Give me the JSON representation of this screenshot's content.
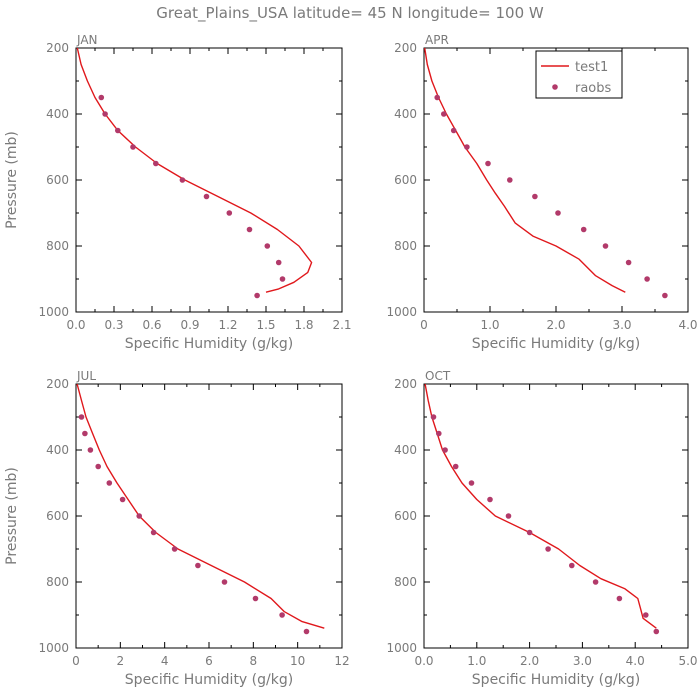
{
  "title": "Great_Plains_USA  latitude= 45 N longitude= 100 W",
  "colors": {
    "model": "#e0181c",
    "obs": "#b23a6a",
    "axis": "#000000",
    "text": "#7a7a7a"
  },
  "legend": {
    "model_label": "test1",
    "obs_label": "raobs",
    "placement": "top-right of APR panel"
  },
  "chart_data": [
    {
      "type": "line",
      "panel": "JAN",
      "xlabel": "Specific Humidity (g/kg)",
      "ylabel": "Pressure (mb)",
      "xlim": [
        0,
        2.1
      ],
      "ylim": [
        1000,
        200
      ],
      "xticks": [
        "0.0",
        "0.3",
        "0.6",
        "0.9",
        "1.2",
        "1.5",
        "1.8",
        "2.1"
      ],
      "yticks": [
        "200",
        "400",
        "600",
        "800",
        "1000"
      ],
      "series": [
        {
          "name": "test1",
          "kind": "line",
          "points": [
            [
              0.01,
              200
            ],
            [
              0.04,
              250
            ],
            [
              0.09,
              300
            ],
            [
              0.15,
              350
            ],
            [
              0.23,
              400
            ],
            [
              0.33,
              450
            ],
            [
              0.47,
              500
            ],
            [
              0.64,
              550
            ],
            [
              0.86,
              600
            ],
            [
              1.12,
              650
            ],
            [
              1.38,
              700
            ],
            [
              1.59,
              750
            ],
            [
              1.76,
              800
            ],
            [
              1.86,
              850
            ],
            [
              1.83,
              880
            ],
            [
              1.72,
              910
            ],
            [
              1.6,
              930
            ],
            [
              1.5,
              940
            ]
          ]
        },
        {
          "name": "raobs",
          "kind": "scatter",
          "points": [
            [
              0.2,
              350
            ],
            [
              0.23,
              400
            ],
            [
              0.33,
              450
            ],
            [
              0.45,
              500
            ],
            [
              0.63,
              550
            ],
            [
              0.84,
              600
            ],
            [
              1.03,
              650
            ],
            [
              1.21,
              700
            ],
            [
              1.37,
              750
            ],
            [
              1.51,
              800
            ],
            [
              1.6,
              850
            ],
            [
              1.63,
              900
            ],
            [
              1.43,
              950
            ]
          ]
        }
      ]
    },
    {
      "type": "line",
      "panel": "APR",
      "xlabel": "Specific Humidity (g/kg)",
      "ylabel": "",
      "xlim": [
        0,
        4.0
      ],
      "ylim": [
        1000,
        200
      ],
      "xticks": [
        "0",
        "1.0",
        "2.0",
        "3.0",
        "4.0"
      ],
      "yticks": [
        "200",
        "400",
        "600",
        "800",
        "1000"
      ],
      "series": [
        {
          "name": "test1",
          "kind": "line",
          "points": [
            [
              0.01,
              200
            ],
            [
              0.05,
              250
            ],
            [
              0.12,
              300
            ],
            [
              0.22,
              350
            ],
            [
              0.34,
              400
            ],
            [
              0.48,
              450
            ],
            [
              0.62,
              500
            ],
            [
              0.8,
              550
            ],
            [
              0.95,
              600
            ],
            [
              1.08,
              640
            ],
            [
              1.22,
              680
            ],
            [
              1.38,
              730
            ],
            [
              1.65,
              770
            ],
            [
              2.0,
              800
            ],
            [
              2.35,
              840
            ],
            [
              2.6,
              890
            ],
            [
              2.85,
              920
            ],
            [
              3.05,
              940
            ]
          ]
        },
        {
          "name": "raobs",
          "kind": "scatter",
          "points": [
            [
              0.2,
              350
            ],
            [
              0.3,
              400
            ],
            [
              0.45,
              450
            ],
            [
              0.65,
              500
            ],
            [
              0.97,
              550
            ],
            [
              1.3,
              600
            ],
            [
              1.68,
              650
            ],
            [
              2.03,
              700
            ],
            [
              2.42,
              750
            ],
            [
              2.75,
              800
            ],
            [
              3.1,
              850
            ],
            [
              3.38,
              900
            ],
            [
              3.65,
              950
            ]
          ]
        }
      ]
    },
    {
      "type": "line",
      "panel": "JUL",
      "xlabel": "Specific Humidity (g/kg)",
      "ylabel": "Pressure (mb)",
      "xlim": [
        0,
        12
      ],
      "ylim": [
        1000,
        200
      ],
      "xticks": [
        "0",
        "2",
        "4",
        "6",
        "8",
        "10",
        "12"
      ],
      "yticks": [
        "200",
        "400",
        "600",
        "800",
        "1000"
      ],
      "series": [
        {
          "name": "test1",
          "kind": "line",
          "points": [
            [
              0.05,
              200
            ],
            [
              0.25,
              250
            ],
            [
              0.45,
              300
            ],
            [
              0.75,
              350
            ],
            [
              1.05,
              400
            ],
            [
              1.4,
              450
            ],
            [
              1.85,
              500
            ],
            [
              2.35,
              550
            ],
            [
              2.85,
              600
            ],
            [
              3.6,
              650
            ],
            [
              4.6,
              700
            ],
            [
              6.1,
              750
            ],
            [
              7.6,
              800
            ],
            [
              8.8,
              850
            ],
            [
              9.4,
              890
            ],
            [
              10.2,
              920
            ],
            [
              11.2,
              940
            ]
          ]
        },
        {
          "name": "raobs",
          "kind": "scatter",
          "points": [
            [
              0.25,
              300
            ],
            [
              0.4,
              350
            ],
            [
              0.65,
              400
            ],
            [
              1.0,
              450
            ],
            [
              1.5,
              500
            ],
            [
              2.1,
              550
            ],
            [
              2.85,
              600
            ],
            [
              3.5,
              650
            ],
            [
              4.45,
              700
            ],
            [
              5.5,
              750
            ],
            [
              6.7,
              800
            ],
            [
              8.1,
              850
            ],
            [
              9.3,
              900
            ],
            [
              10.4,
              950
            ]
          ]
        }
      ]
    },
    {
      "type": "line",
      "panel": "OCT",
      "xlabel": "Specific Humidity (g/kg)",
      "ylabel": "",
      "xlim": [
        0,
        5.0
      ],
      "ylim": [
        1000,
        200
      ],
      "xticks": [
        "0.0",
        "1.0",
        "2.0",
        "3.0",
        "4.0",
        "5.0"
      ],
      "yticks": [
        "200",
        "400",
        "600",
        "800",
        "1000"
      ],
      "series": [
        {
          "name": "test1",
          "kind": "line",
          "points": [
            [
              0.02,
              200
            ],
            [
              0.08,
              250
            ],
            [
              0.15,
              300
            ],
            [
              0.25,
              350
            ],
            [
              0.35,
              400
            ],
            [
              0.52,
              450
            ],
            [
              0.72,
              500
            ],
            [
              1.0,
              550
            ],
            [
              1.35,
              600
            ],
            [
              2.0,
              650
            ],
            [
              2.55,
              700
            ],
            [
              2.95,
              750
            ],
            [
              3.35,
              790
            ],
            [
              3.8,
              820
            ],
            [
              4.05,
              850
            ],
            [
              4.1,
              880
            ],
            [
              4.15,
              910
            ],
            [
              4.4,
              940
            ]
          ]
        },
        {
          "name": "raobs",
          "kind": "scatter",
          "points": [
            [
              0.18,
              300
            ],
            [
              0.28,
              350
            ],
            [
              0.4,
              400
            ],
            [
              0.6,
              450
            ],
            [
              0.9,
              500
            ],
            [
              1.25,
              550
            ],
            [
              1.6,
              600
            ],
            [
              2.0,
              650
            ],
            [
              2.35,
              700
            ],
            [
              2.8,
              750
            ],
            [
              3.25,
              800
            ],
            [
              3.7,
              850
            ],
            [
              4.2,
              900
            ],
            [
              4.4,
              950
            ]
          ]
        }
      ]
    }
  ]
}
